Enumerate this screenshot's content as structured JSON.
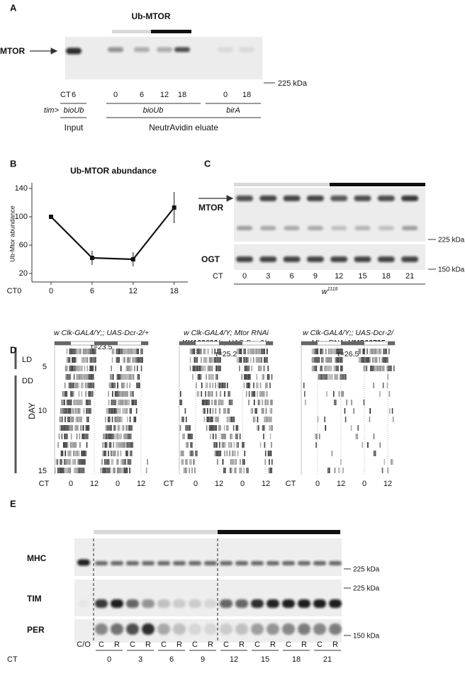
{
  "panel_a": {
    "label": "A",
    "title": "Ub-MTOR",
    "protein": "MTOR",
    "marker": "225 kDa",
    "ct_label": "CT",
    "ct": [
      "6",
      "0",
      "6",
      "12",
      "18",
      "0",
      "18"
    ],
    "genotype_label": "tim>",
    "genotypes": [
      "bioUb",
      "bioUb",
      "birA"
    ],
    "groups": [
      "Input",
      "NeutrAvidin eluate"
    ]
  },
  "panel_b": {
    "label": "B",
    "type": "line",
    "title": "Ub-MTOR abundance",
    "y_label": "Ub-Mtor abundance",
    "x_label": "CT0",
    "x": [
      0,
      6,
      12,
      18
    ],
    "values": [
      100,
      42,
      40,
      113
    ],
    "errors": [
      0,
      10,
      10,
      22
    ],
    "xlim": [
      -2.8,
      20
    ],
    "ylim": [
      8,
      148
    ],
    "yticks": [
      20,
      60,
      100,
      140
    ],
    "color": "#111111"
  },
  "panel_c": {
    "label": "C",
    "proteins": [
      "MTOR",
      "OGT"
    ],
    "markers": [
      "225 kDa",
      "150 kDa"
    ],
    "ct_label": "CT",
    "ct": [
      "0",
      "3",
      "6",
      "9",
      "12",
      "15",
      "18",
      "21"
    ],
    "genotype": "w",
    "genotype_sup": "1118"
  },
  "panel_d": {
    "label": "D",
    "phases": [
      "LD",
      "DD"
    ],
    "day_label": "DAY",
    "days": [
      "5",
      "10",
      "15"
    ],
    "ct_label": "CT",
    "ct": [
      "0",
      "12",
      "0",
      "12"
    ],
    "actograms": [
      {
        "title": [
          [
            {
              "text": "w Clk-GAL4/Y;; UAS-Dcr-2/+",
              "bold": false
            }
          ]
        ],
        "tau": "τ=23.5"
      },
      {
        "title": [
          [
            {
              "text": "w Clk-GAL4/Y; Mtor RNAi",
              "bold": false
            }
          ],
          [
            {
              "text": "KK102690",
              "bold": true
            },
            {
              "text": "/+; UAS-Dcr-2/+",
              "bold": false
            }
          ]
        ],
        "tau": "τ=25.2"
      },
      {
        "title": [
          [
            {
              "text": "w Clk-GAL4/Y;; UAS-Dcr-2/",
              "bold": false
            }
          ],
          [
            {
              "text": "Mtor RNAi ",
              "bold": false
            },
            {
              "text": "HMS00735",
              "bold": true
            }
          ]
        ],
        "tau": "τ=26.5"
      }
    ]
  },
  "panel_e": {
    "label": "E",
    "proteins": [
      "MHC",
      "TIM",
      "PER"
    ],
    "markers": [
      "225 kDa",
      "225 kDa",
      "150 kDa"
    ],
    "control": "C/O",
    "lanes": [
      "C",
      "R"
    ],
    "ct_label": "CT",
    "ct": [
      "0",
      "3",
      "6",
      "9",
      "12",
      "15",
      "18",
      "21"
    ]
  }
}
